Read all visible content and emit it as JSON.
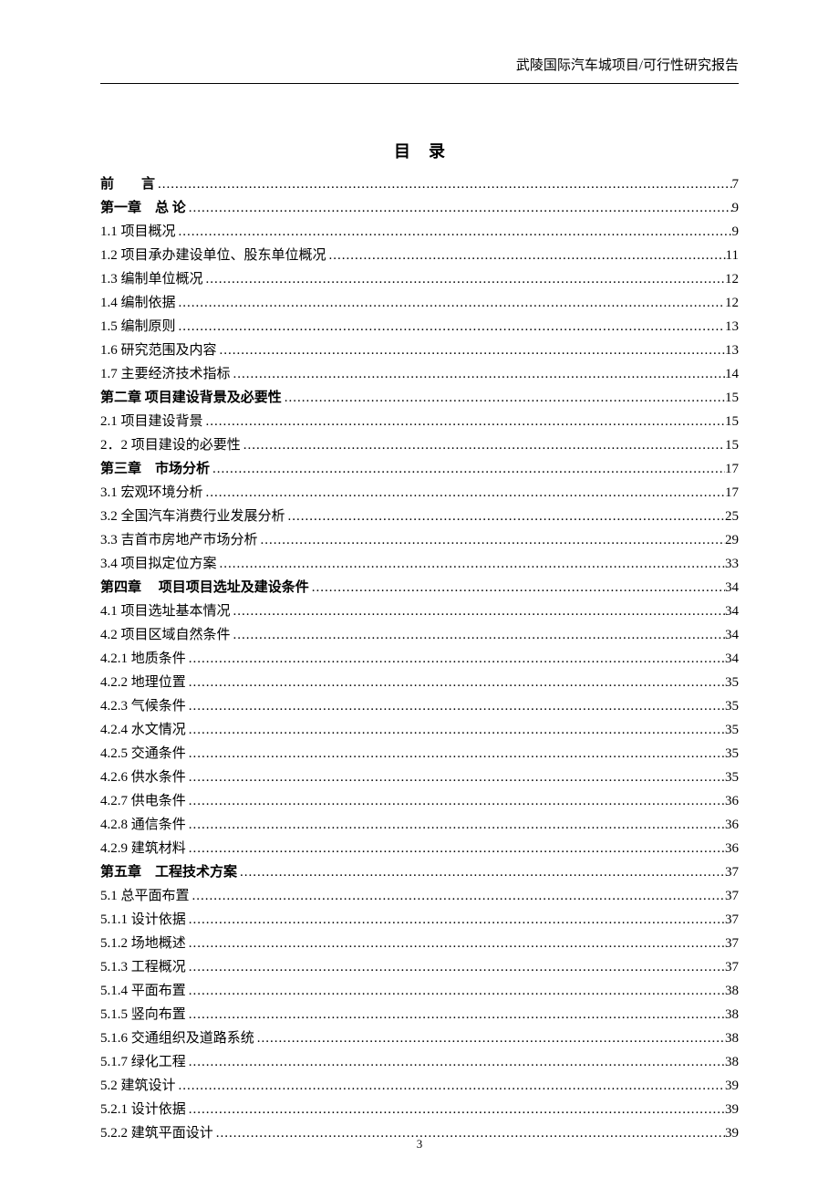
{
  "header_text": "武陵国际汽车城项目/可行性研究报告",
  "toc_title": "目录",
  "page_number": "3",
  "entries": [
    {
      "label": "前　　言",
      "page": "7",
      "bold": true
    },
    {
      "label": "第一章　总 论",
      "page": "9",
      "bold": true
    },
    {
      "label": "1.1 项目概况",
      "page": "9",
      "bold": false
    },
    {
      "label": "1.2 项目承办建设单位、股东单位概况",
      "page": "11",
      "bold": false
    },
    {
      "label": "1.3 编制单位概况",
      "page": "12",
      "bold": false
    },
    {
      "label": "1.4 编制依据",
      "page": "12",
      "bold": false
    },
    {
      "label": "1.5 编制原则",
      "page": "13",
      "bold": false
    },
    {
      "label": "1.6 研究范围及内容",
      "page": "13",
      "bold": false
    },
    {
      "label": "1.7 主要经济技术指标",
      "page": "14",
      "bold": false
    },
    {
      "label": "第二章  项目建设背景及必要性 ",
      "page": "15",
      "bold": true
    },
    {
      "label": "2.1 项目建设背景",
      "page": "15",
      "bold": false
    },
    {
      "label": "2．2 项目建设的必要性",
      "page": "15",
      "bold": false
    },
    {
      "label": "第三章　市场分析",
      "page": "17",
      "bold": true
    },
    {
      "label": "3.1 宏观环境分析",
      "page": "17",
      "bold": false
    },
    {
      "label": "3.2 全国汽车消费行业发展分析",
      "page": "25",
      "bold": false
    },
    {
      "label": "3.3 吉首市房地产市场分析",
      "page": "29",
      "bold": false
    },
    {
      "label": "3.4 项目拟定位方案",
      "page": "33",
      "bold": false
    },
    {
      "label": "第四章　 项目项目选址及建设条件 ",
      "page": "34",
      "bold": true
    },
    {
      "label": "4.1 项目选址基本情况",
      "page": "34",
      "bold": false
    },
    {
      "label": "4.2 项目区域自然条件",
      "page": "34",
      "bold": false
    },
    {
      "label": "4.2.1 地质条件",
      "page": "34",
      "bold": false
    },
    {
      "label": "4.2.2 地理位置",
      "page": "35",
      "bold": false
    },
    {
      "label": "4.2.3 气候条件",
      "page": "35",
      "bold": false
    },
    {
      "label": "4.2.4 水文情况",
      "page": "35",
      "bold": false
    },
    {
      "label": "4.2.5 交通条件",
      "page": "35",
      "bold": false
    },
    {
      "label": "4.2.6 供水条件",
      "page": "35",
      "bold": false
    },
    {
      "label": "4.2.7 供电条件",
      "page": "36",
      "bold": false
    },
    {
      "label": "4.2.8 通信条件",
      "page": "36",
      "bold": false
    },
    {
      "label": "4.2.9 建筑材料",
      "page": "36",
      "bold": false
    },
    {
      "label": "第五章　工程技术方案 ",
      "page": "37",
      "bold": true
    },
    {
      "label": "5.1 总平面布置",
      "page": "37",
      "bold": false
    },
    {
      "label": "5.1.1 设计依据",
      "page": "37",
      "bold": false
    },
    {
      "label": "5.1.2 场地概述",
      "page": "37",
      "bold": false
    },
    {
      "label": "5.1.3 工程概况",
      "page": "37",
      "bold": false
    },
    {
      "label": "5.1.4 平面布置",
      "page": "38",
      "bold": false
    },
    {
      "label": "5.1.5 竖向布置",
      "page": "38",
      "bold": false
    },
    {
      "label": "5.1.6 交通组织及道路系统",
      "page": "38",
      "bold": false
    },
    {
      "label": "5.1.7 绿化工程",
      "page": "38",
      "bold": false
    },
    {
      "label": "5.2 建筑设计",
      "page": "39",
      "bold": false
    },
    {
      "label": "5.2.1 设计依据",
      "page": "39",
      "bold": false
    },
    {
      "label": "5.2.2 建筑平面设计",
      "page": "39",
      "bold": false
    }
  ]
}
